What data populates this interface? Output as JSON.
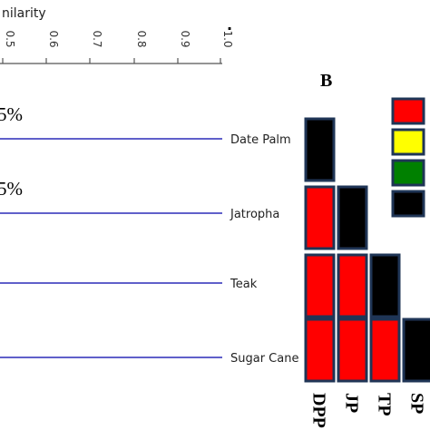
{
  "axis": {
    "title": "nilarity",
    "ticks": [
      "0.5",
      "0.6",
      "0.7",
      "0.8",
      "0.9",
      "1.0"
    ],
    "dot": "."
  },
  "dendrogram": {
    "branch_color": "#2b2bb8",
    "leaves": [
      {
        "name": "Date Palm",
        "percent": "5%"
      },
      {
        "name": "Jatropha",
        "percent": "5%"
      },
      {
        "name": "Teak",
        "percent": ""
      },
      {
        "name": "Sugar Cane",
        "percent": ""
      }
    ]
  },
  "panel_b": {
    "label": "B",
    "legend_colors": [
      "#ff0000",
      "#ffff00",
      "#008000",
      "#000000"
    ],
    "border_color": "#1f3556",
    "rows": [
      [
        "#000000"
      ],
      [
        "#ff0000",
        "#000000"
      ],
      [
        "#ff0000",
        "#ff0000",
        "#000000"
      ],
      [
        "#ff0000",
        "#ff0000",
        "#ff0000",
        "#000000"
      ]
    ],
    "columns": [
      "DPP",
      "JP",
      "TP",
      "SP"
    ]
  }
}
